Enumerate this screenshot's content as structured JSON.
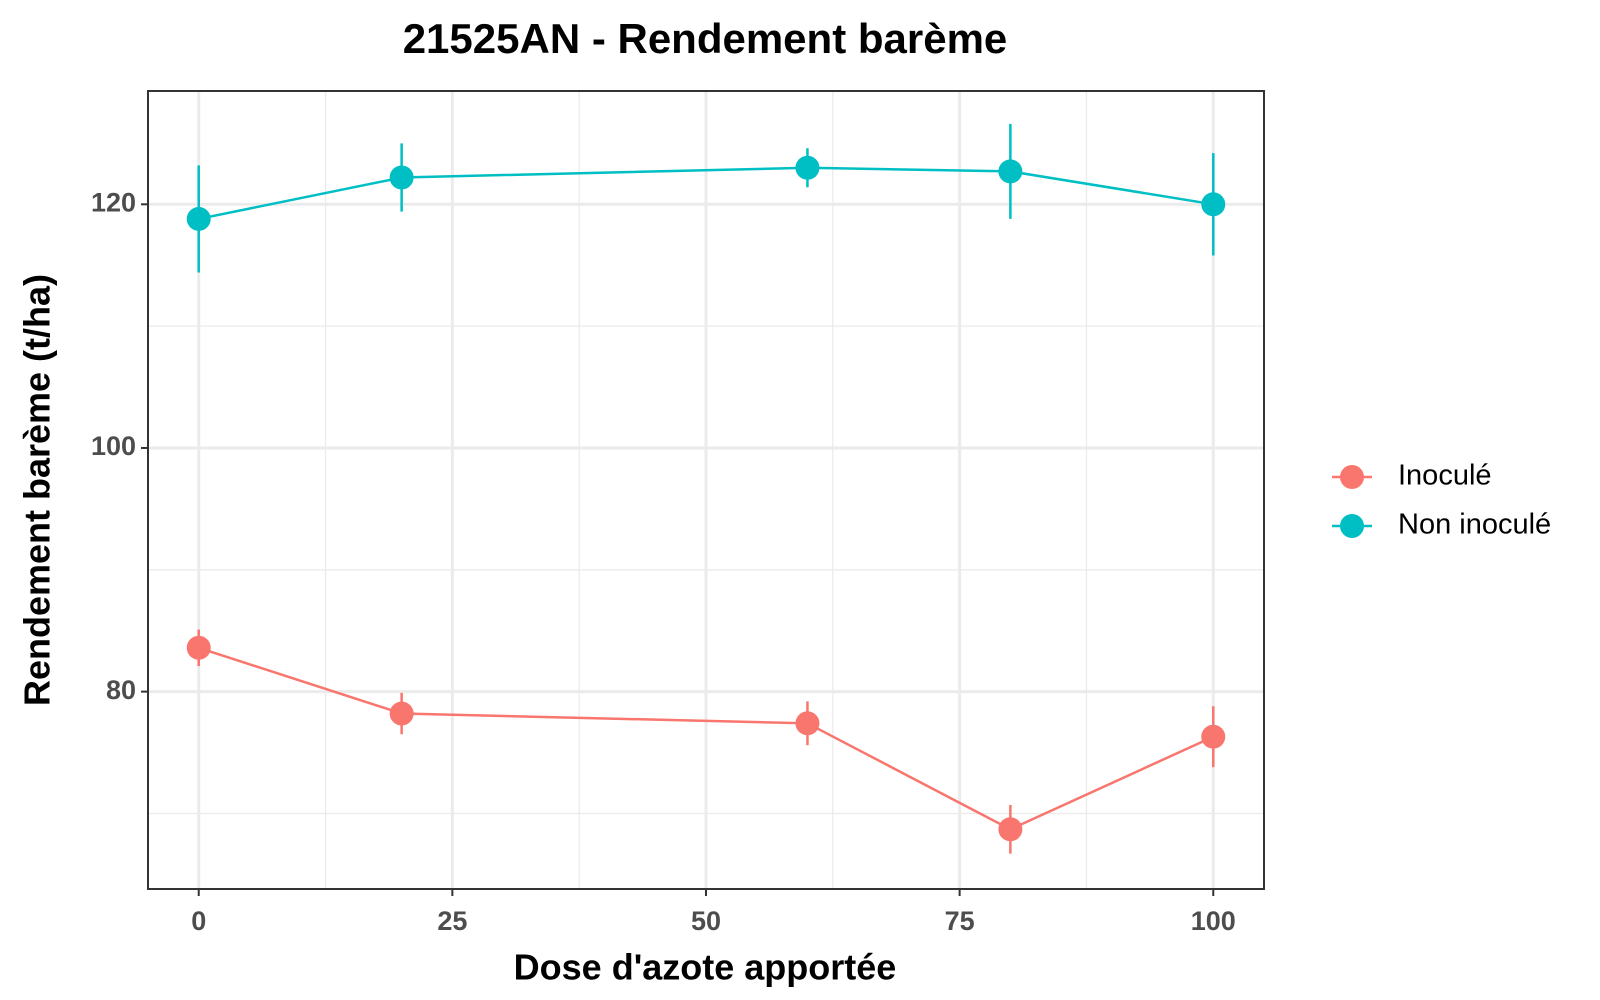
{
  "chart_data": {
    "type": "line",
    "title": "21525AN  - Rendement barème",
    "x_label": "Dose d'azote apportée",
    "y_label": "Rendement barème (t/ha)",
    "x": [
      0,
      20,
      60,
      80,
      100
    ],
    "series": [
      {
        "name": "Inoculé",
        "color": "#f8766d",
        "values": [
          83.6,
          78.2,
          77.4,
          68.7,
          76.3
        ],
        "errors": [
          1.5,
          1.7,
          1.8,
          2.0,
          2.5
        ]
      },
      {
        "name": "Non inoculé",
        "color": "#00bfc4",
        "values": [
          118.8,
          122.2,
          123.0,
          122.7,
          120.0
        ],
        "errors": [
          4.4,
          2.8,
          1.6,
          3.9,
          4.2
        ]
      }
    ],
    "xlim": [
      -5,
      105
    ],
    "xticks": [
      0,
      25,
      50,
      75,
      100
    ],
    "ylim": [
      63.8,
      129.3
    ],
    "yticks": [
      80,
      100,
      120
    ],
    "grid": true,
    "legend": "right"
  }
}
